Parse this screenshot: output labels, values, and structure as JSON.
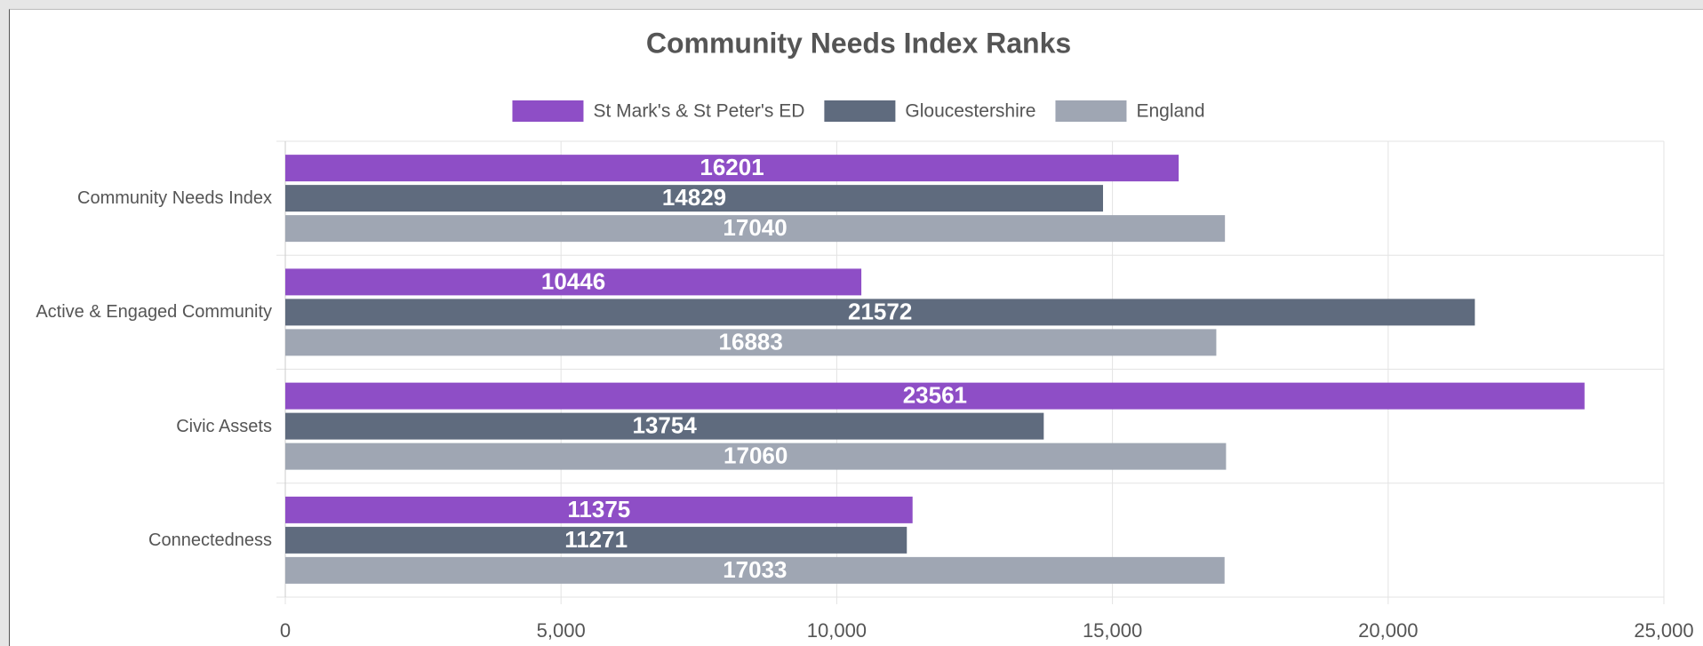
{
  "chart_data": {
    "type": "barh",
    "title": "Community Needs Index Ranks",
    "categories": [
      "Community Needs Index",
      "Active & Engaged Community",
      "Civic Assets",
      "Connectedness"
    ],
    "series": [
      {
        "name": "St Mark's & St Peter's ED",
        "color": "#8e4ec6",
        "values": [
          16201,
          10446,
          23561,
          11375
        ]
      },
      {
        "name": "Gloucestershire",
        "color": "#5f6b7e",
        "values": [
          14829,
          21572,
          13754,
          11271
        ]
      },
      {
        "name": "England",
        "color": "#9fa6b3",
        "values": [
          17040,
          16883,
          17060,
          17033
        ]
      }
    ],
    "xlim": [
      0,
      25000
    ],
    "xticks": [
      0,
      {
        "value": 5000,
        "label": "5,000"
      },
      {
        "value": 10000,
        "label": "10,000"
      },
      {
        "value": 15000,
        "label": "15,000"
      },
      {
        "value": 20000,
        "label": "20,000"
      },
      {
        "value": 25000,
        "label": "25,000"
      }
    ],
    "grid": true,
    "legend": "top"
  }
}
